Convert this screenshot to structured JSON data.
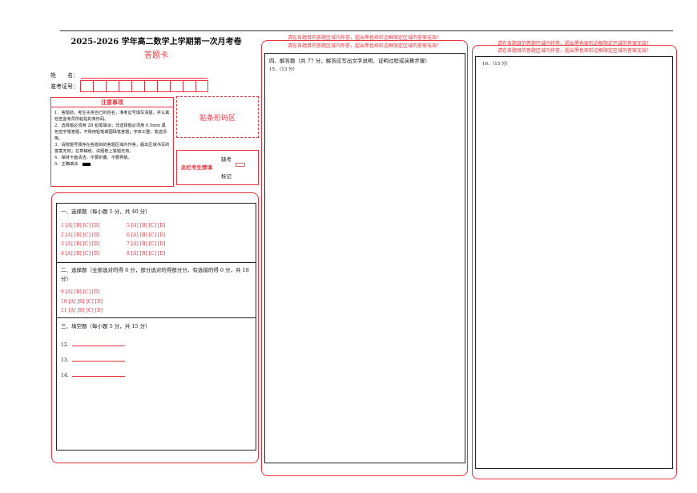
{
  "header": {
    "title": "2025-2026 学年高二数学上学期第一次月考卷",
    "subtitle": "答题卡",
    "name_label": "姓　　名：",
    "id_label": "准考证号："
  },
  "notice": {
    "title": "注意事项",
    "items": [
      "1．答题前，考生先将自己的姓名，准考证号填写清楚，并认真检查监考员所粘贴的条形码。",
      "2．选择题必须用 2B 铅笔填涂；非选择题必须用 0.5mm 黑色签字笔答题，不得用铅笔或圆珠笔答题；字体工整、笔迹清晰。",
      "3．请按题号顺序在各题目的答题区域内作答，超出区域书写的答案无效；在草稿纸、试题卷上答题无效。",
      "4．保持卡面清洁，不要折叠、不要弄破。",
      "5．正确填涂"
    ]
  },
  "barcode": {
    "label": "贴条形码区"
  },
  "absent": {
    "forbidden": "此栏考生禁填",
    "absent": "缺考",
    "mark": "标记"
  },
  "section1": {
    "title": "一、选择题（每小题 5 分，共 40 分）",
    "rows": [
      "1 [A] [B] [C] [D]",
      "2 [A] [B] [C] [D]",
      "3 [A] [B] [C] [D]",
      "4 [A] [B] [C] [D]",
      "5 [A] [B] [C] [D]",
      "6 [A] [B] [C] [D]",
      "7 [A] [B] [C] [D]",
      "8 [A] [B] [C] [D]"
    ]
  },
  "section2": {
    "title": "二、选择题（全部选对的得 6 分，部分选对的得部分分，有选错的得 0 分，共 18 分）",
    "rows": [
      "9 [A] [B] [C] [D]",
      "10 [A] [B] [C] [D]",
      "11 [A] [B] [C] [D]"
    ]
  },
  "section3": {
    "title": "三、填空题（每小题 5 分，共 15 分）",
    "rows": [
      "12.",
      "13.",
      "14."
    ]
  },
  "section4": {
    "warning": "请在各题目的答题区域内作答，超出黑色矩形边框限定区域的答案无效！",
    "title": "四、解答题（共 77 分，解答应写出文字说明、证明过程或演算步骤）",
    "q15": "15．（13 分）",
    "q16": "16．（15 分）"
  }
}
